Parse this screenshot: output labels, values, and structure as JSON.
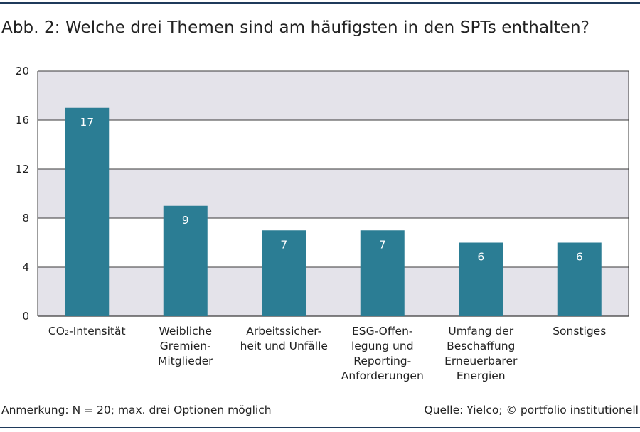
{
  "header": {
    "title": "Abb. 2: Welche drei Themen sind am häufigsten in den SPTs enthalten?"
  },
  "footer": {
    "note": "Anmerkung: N = 20; max. drei Optionen möglich",
    "source": "Quelle: Yielco; © portfolio institutionell"
  },
  "colors": {
    "bar": "#2b7d94",
    "band": "#e4e3ea",
    "grid": "#3a3a3a",
    "rule": "#1f3a5b"
  },
  "chart_data": {
    "type": "bar",
    "title": "Abb. 2: Welche drei Themen sind am häufigsten in den SPTs enthalten?",
    "categories": [
      [
        "CO₂-Intensität"
      ],
      [
        "Weibliche",
        "Gremien-",
        "Mitglieder"
      ],
      [
        "Arbeitssicher-",
        "heit und Unfälle"
      ],
      [
        "ESG-Offen-",
        "legung und",
        "Reporting-",
        "Anforderungen"
      ],
      [
        "Umfang der",
        "Beschaffung",
        "Erneuerbarer",
        "Energien"
      ],
      [
        "Sonstiges"
      ]
    ],
    "values": [
      17,
      9,
      7,
      7,
      6,
      6
    ],
    "ylim": [
      0,
      20
    ],
    "yticks": [
      0,
      4,
      8,
      12,
      16,
      20
    ],
    "grid": true,
    "alternating_bands": true,
    "data_labels": true,
    "xlabel": "",
    "ylabel": ""
  }
}
